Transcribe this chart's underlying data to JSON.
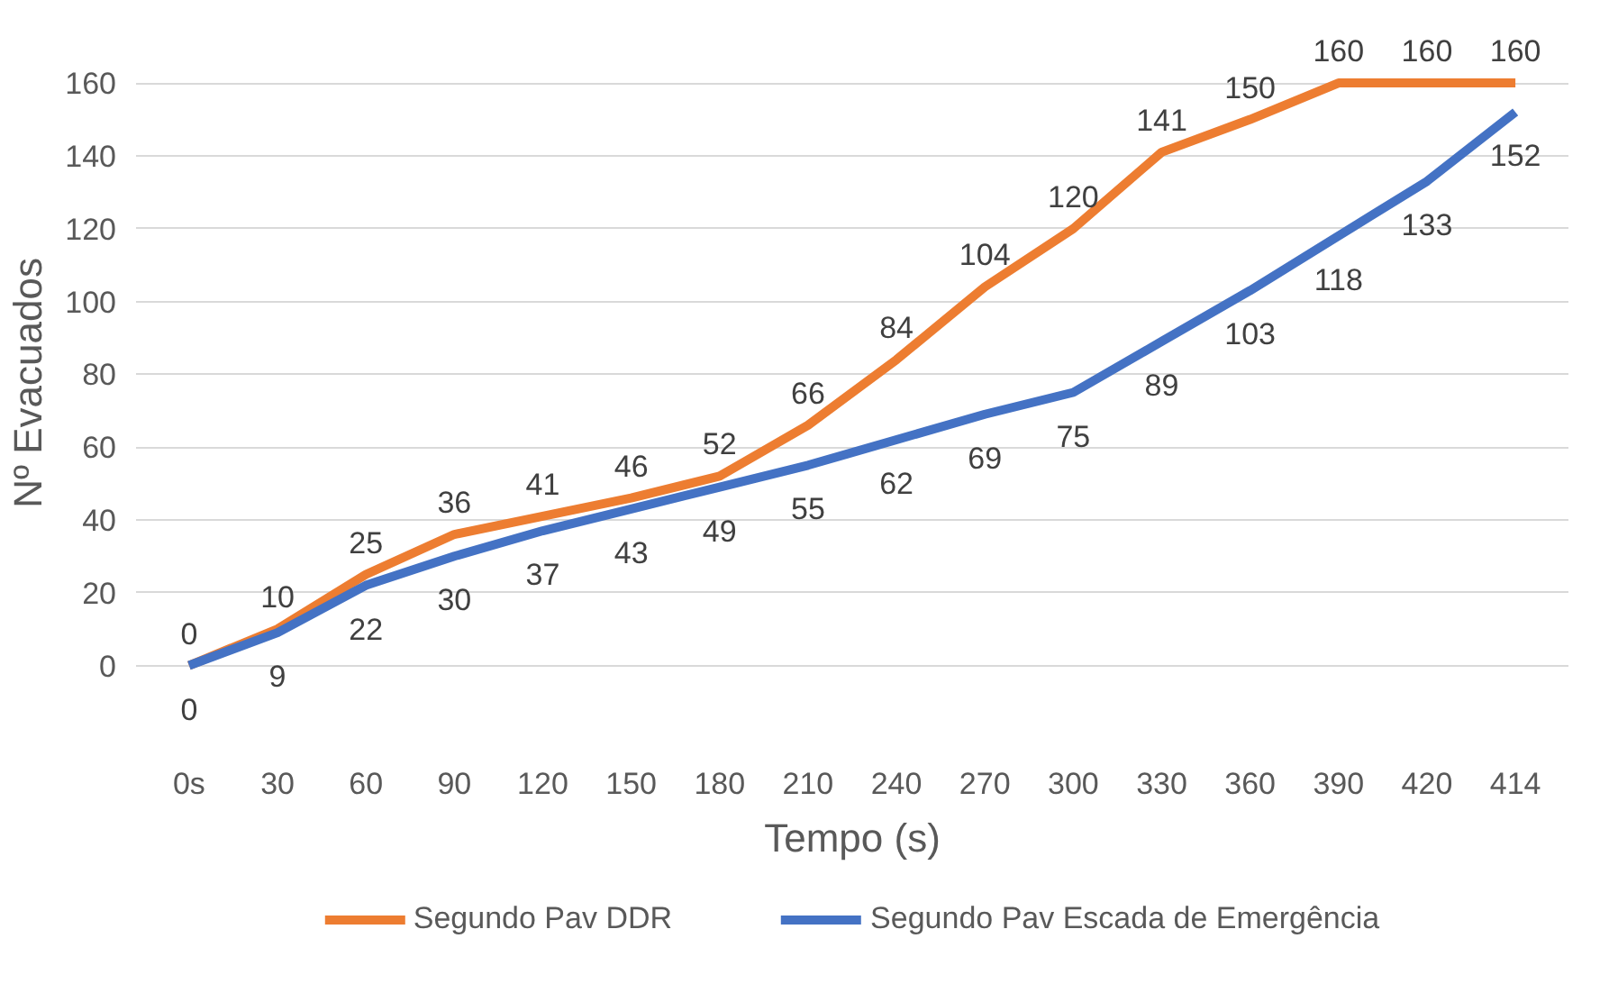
{
  "chart_data": {
    "type": "line",
    "xlabel": "Tempo (s)",
    "ylabel": "Nº Evacuados",
    "categories": [
      "0s",
      "30",
      "60",
      "90",
      "120",
      "150",
      "180",
      "210",
      "240",
      "270",
      "300",
      "330",
      "360",
      "390",
      "420",
      "414"
    ],
    "series": [
      {
        "name": "Segundo Pav DDR",
        "color": "#ed7d31",
        "values": [
          0,
          10,
          25,
          36,
          41,
          46,
          52,
          66,
          84,
          104,
          120,
          141,
          150,
          160,
          160,
          160
        ]
      },
      {
        "name": "Segundo Pav Escada de Emergência",
        "color": "#4472c4",
        "values": [
          0,
          9,
          22,
          30,
          37,
          43,
          49,
          55,
          62,
          69,
          75,
          89,
          103,
          118,
          133,
          152
        ]
      }
    ],
    "ylim": [
      0,
      160
    ],
    "yticks": [
      0,
      20,
      40,
      60,
      80,
      100,
      120,
      140,
      160
    ],
    "grid": "y",
    "legend": "bottom",
    "data_labels": true,
    "marker": "none",
    "line_style": "solid"
  }
}
